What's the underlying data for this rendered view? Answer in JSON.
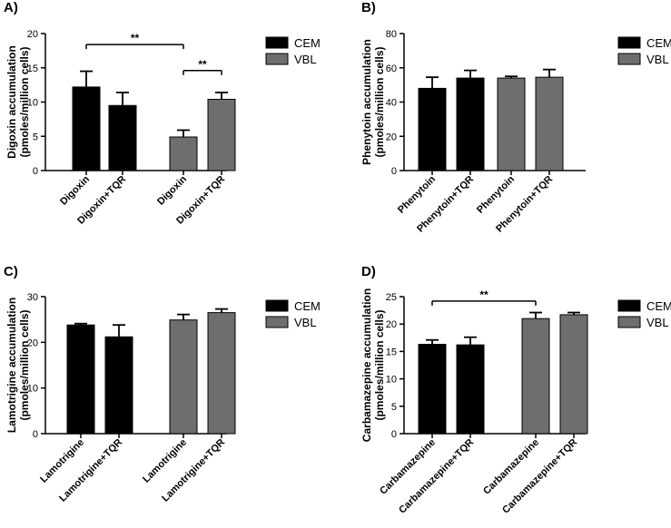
{
  "legend_entries": [
    {
      "name": "CEM",
      "color": "#000000"
    },
    {
      "name": "VBL",
      "color": "#6e6e6e"
    }
  ],
  "chart_data": [
    {
      "panel": "A)",
      "type": "bar",
      "categories": [
        "Digoxin",
        "Digoxin+TQR",
        "Digoxin",
        "Digoxin+TQR"
      ],
      "groups": [
        "CEM",
        "CEM",
        "VBL",
        "VBL"
      ],
      "values": [
        12.2,
        9.5,
        4.9,
        10.4
      ],
      "errors": [
        2.3,
        1.9,
        1.0,
        1.0
      ],
      "ylabel": [
        "Digoxin accumulation",
        "(pmoles/million cells)"
      ],
      "ylim": [
        0,
        20
      ],
      "yticks": [
        0,
        5,
        10,
        15,
        20
      ],
      "significance": [
        {
          "from": 0,
          "to": 2,
          "label": "**",
          "y": 18.4
        },
        {
          "from": 2,
          "to": 3,
          "label": "**",
          "y": 14.6
        }
      ]
    },
    {
      "panel": "B)",
      "type": "bar",
      "categories": [
        "Phenytoin",
        "Phenytoin+TQR",
        "Phenytoin",
        "Phenytoin+TQR"
      ],
      "groups": [
        "CEM",
        "CEM",
        "VBL",
        "VBL"
      ],
      "values": [
        48,
        54,
        54,
        54.5
      ],
      "errors": [
        6.5,
        4.5,
        1.0,
        4.5
      ],
      "ylabel": [
        "Phenytoin accumulation",
        "(pmoles/million cells)"
      ],
      "ylim": [
        0,
        80
      ],
      "yticks": [
        0,
        20,
        40,
        60,
        80
      ],
      "significance": []
    },
    {
      "panel": "C)",
      "type": "bar",
      "categories": [
        "Lamotrigine",
        "Lamotrigine+TQR",
        "Lamotrigine",
        "Lamotrigine+TQR"
      ],
      "groups": [
        "CEM",
        "CEM",
        "VBL",
        "VBL"
      ],
      "values": [
        23.8,
        21.2,
        24.9,
        26.5
      ],
      "errors": [
        0.3,
        2.6,
        1.2,
        0.8
      ],
      "ylabel": [
        "Lamotrigine accumulation",
        "(pmoles/million cells)"
      ],
      "ylim": [
        0,
        30
      ],
      "yticks": [
        0,
        10,
        20,
        30
      ],
      "significance": []
    },
    {
      "panel": "D)",
      "type": "bar",
      "categories": [
        "Carbamazepine",
        "Carbamazepine+TQR",
        "Carbamazepine",
        "Carbamazepine+TQR"
      ],
      "groups": [
        "CEM",
        "CEM",
        "VBL",
        "VBL"
      ],
      "values": [
        16.3,
        16.2,
        21.0,
        21.7
      ],
      "errors": [
        0.8,
        1.4,
        1.1,
        0.4
      ],
      "ylabel": [
        "Carbamazepine accumulation",
        "(pmoles/million cells)"
      ],
      "ylim": [
        0,
        25
      ],
      "yticks": [
        0,
        5,
        10,
        15,
        20,
        25
      ],
      "significance": [
        {
          "from": 0,
          "to": 2,
          "label": "**",
          "y": 24.2
        }
      ]
    }
  ]
}
